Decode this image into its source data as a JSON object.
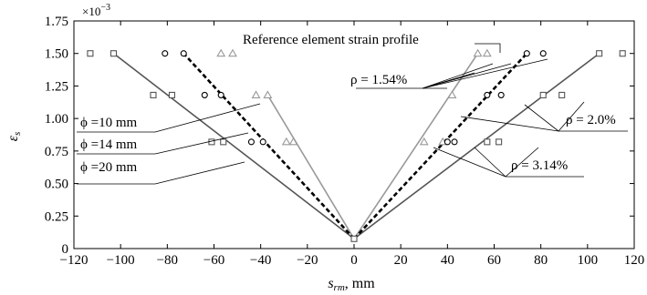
{
  "chart_data": {
    "type": "line",
    "x_label_main": "s",
    "x_label_sub": "rm",
    "x_label_unit": ", mm",
    "y_label_main": "ε",
    "y_label_sub": "s",
    "multiplier_base": "×10",
    "multiplier_exp": "−3",
    "xlim": [
      -120,
      120
    ],
    "ylim": [
      0,
      1.75
    ],
    "x_ticks": [
      -120,
      -100,
      -80,
      -60,
      -40,
      -20,
      0,
      20,
      40,
      60,
      80,
      100,
      120
    ],
    "x_tick_labels": [
      "−120",
      "−100",
      "−80",
      "−60",
      "−40",
      "−20",
      "0",
      "20",
      "40",
      "60",
      "80",
      "100",
      "120"
    ],
    "y_ticks": [
      0,
      0.25,
      0.5,
      0.75,
      1.0,
      1.25,
      1.5,
      1.75
    ],
    "y_tick_labels": [
      "0",
      "0.25",
      "0.50",
      "0.75",
      "1.00",
      "1.25",
      "1.50",
      "1.75"
    ],
    "grid": false,
    "colors": {
      "dark_gray": "#555555",
      "light_gray": "#999999",
      "reference": "#000000"
    },
    "apex": {
      "x": 0,
      "y": 0.075
    },
    "series": [
      {
        "group": "phi=10",
        "style": "dark_gray",
        "marker": "square",
        "left_line_end": [
          -103,
          1.5
        ],
        "right_line_end": [
          105,
          1.5
        ],
        "left_points": [
          [
            -113,
            1.5
          ],
          [
            -103,
            1.5
          ],
          [
            -86,
            1.18
          ],
          [
            -78,
            1.18
          ],
          [
            -61,
            0.82
          ],
          [
            -56,
            0.82
          ]
        ],
        "right_points": [
          [
            105,
            1.5
          ],
          [
            115,
            1.5
          ],
          [
            81,
            1.18
          ],
          [
            89,
            1.18
          ],
          [
            57,
            0.82
          ],
          [
            62,
            0.82
          ]
        ]
      },
      {
        "group": "phi=14",
        "style": "light_gray",
        "marker": "triangle",
        "left_line_end": [
          -37,
          1.18
        ],
        "right_line_end": [
          53,
          1.5
        ],
        "left_points": [
          [
            -57,
            1.5
          ],
          [
            -52,
            1.5
          ],
          [
            -42,
            1.18
          ],
          [
            -37,
            1.18
          ],
          [
            -29,
            0.82
          ],
          [
            -26,
            0.82
          ]
        ],
        "right_points": [
          [
            53,
            1.5
          ],
          [
            57,
            1.5
          ],
          [
            30,
            0.82
          ],
          [
            42,
            1.18
          ],
          [
            38,
            0.82
          ]
        ]
      },
      {
        "group": "phi=20",
        "style": "reference",
        "marker": "circle",
        "left_line_end": [
          -73,
          1.5
        ],
        "right_line_end": [
          74,
          1.5
        ],
        "left_points": [
          [
            -81,
            1.5
          ],
          [
            -73,
            1.5
          ],
          [
            -64,
            1.18
          ],
          [
            -57,
            1.18
          ],
          [
            -44,
            0.82
          ],
          [
            -39,
            0.82
          ]
        ],
        "right_points": [
          [
            74,
            1.5
          ],
          [
            81,
            1.5
          ],
          [
            57,
            1.18
          ],
          [
            63,
            1.18
          ],
          [
            40,
            0.82
          ],
          [
            43,
            0.82
          ]
        ]
      }
    ],
    "annotations": {
      "reference_label": "Reference element strain profile",
      "rho_154": "ρ = 1.54%",
      "rho_20": "ρ = 2.0%",
      "rho_314": "ρ = 3.14%",
      "phi_10": "ϕ =10 mm",
      "phi_14": "ϕ =14 mm",
      "phi_20": "ϕ =20 mm"
    }
  }
}
